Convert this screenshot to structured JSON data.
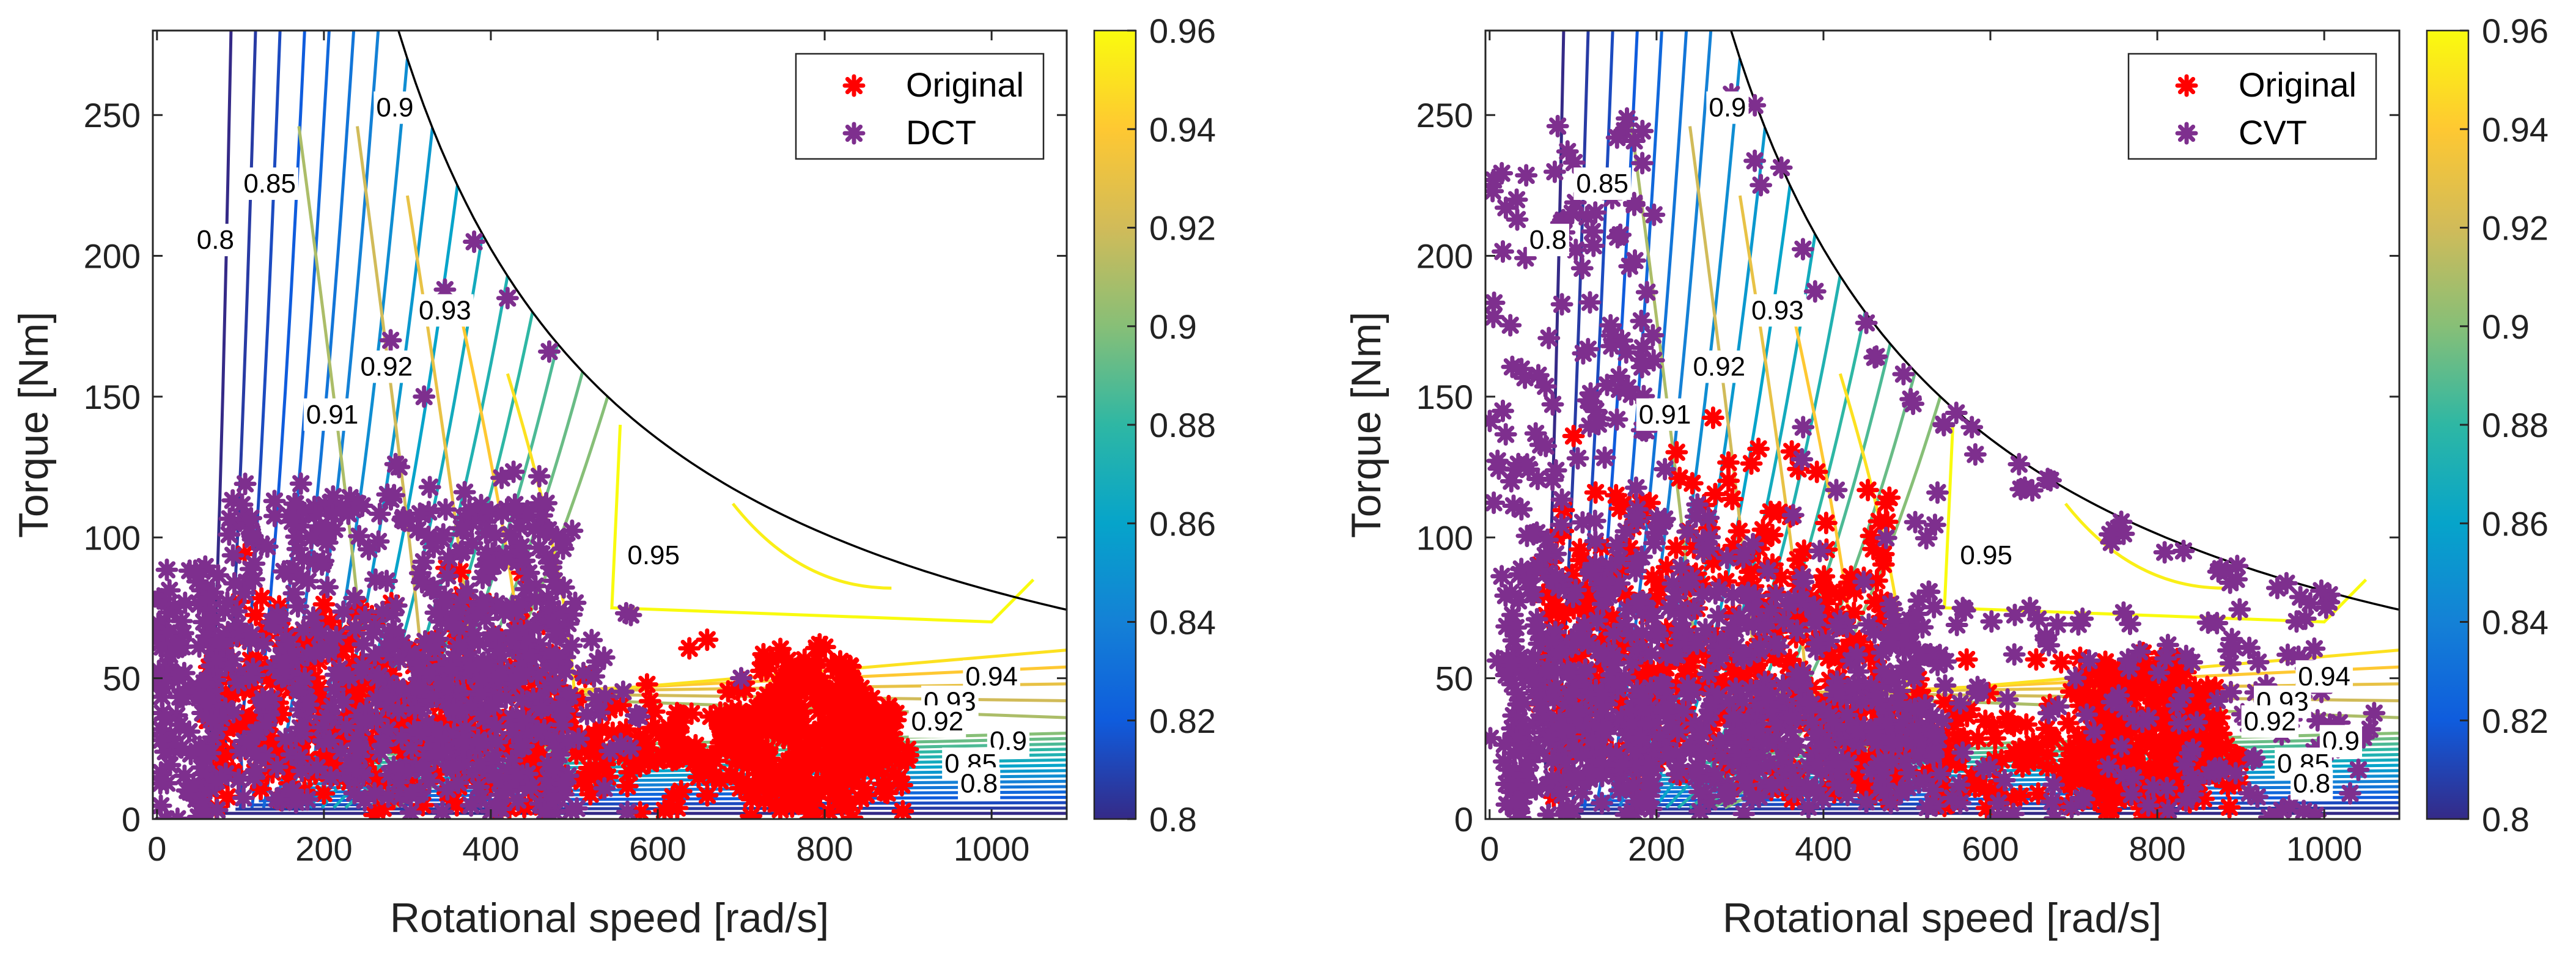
{
  "chart_data": [
    {
      "type": "scatter",
      "overlay": "efficiency-contour",
      "xlabel": "Rotational speed [rad/s]",
      "ylabel": "Torque [Nm]",
      "xlim": [
        -5,
        1090
      ],
      "ylim": [
        0,
        280
      ],
      "xticks": [
        "0",
        "200",
        "400",
        "600",
        "800",
        "1000"
      ],
      "xtick_values": [
        0,
        200,
        400,
        600,
        800,
        1000
      ],
      "yticks": [
        "0",
        "50",
        "100",
        "150",
        "200",
        "250"
      ],
      "ytick_values": [
        0,
        50,
        100,
        150,
        200,
        250
      ],
      "legend": {
        "position": "top-right",
        "entries": [
          "Original",
          "DCT"
        ]
      },
      "colorbar": {
        "range": [
          0.8,
          0.96
        ],
        "ticks": [
          "0.8",
          "0.82",
          "0.84",
          "0.86",
          "0.88",
          "0.9",
          "0.92",
          "0.94",
          "0.96"
        ],
        "tick_values": [
          0.8,
          0.82,
          0.84,
          0.86,
          0.88,
          0.9,
          0.92,
          0.94,
          0.96
        ]
      },
      "contour_labels": [
        {
          "text": "0.8",
          "speed": 70,
          "torque": 205
        },
        {
          "text": "0.85",
          "speed": 135,
          "torque": 225
        },
        {
          "text": "0.9",
          "speed": 285,
          "torque": 252
        },
        {
          "text": "0.91",
          "speed": 210,
          "torque": 143
        },
        {
          "text": "0.92",
          "speed": 275,
          "torque": 160
        },
        {
          "text": "0.93",
          "speed": 345,
          "torque": 180
        },
        {
          "text": "0.95",
          "speed": 595,
          "torque": 93
        },
        {
          "text": "0.94",
          "speed": 1000,
          "torque": 50
        },
        {
          "text": "0.93",
          "speed": 950,
          "torque": 41
        },
        {
          "text": "0.92",
          "speed": 935,
          "torque": 34
        },
        {
          "text": "0.9",
          "speed": 1020,
          "torque": 27
        },
        {
          "text": "0.85",
          "speed": 975,
          "torque": 19
        },
        {
          "text": "0.8",
          "speed": 985,
          "torque": 12
        }
      ],
      "series": [
        {
          "name": "Original",
          "color": "#ff0000",
          "marker": "asterisk",
          "description": "dense operating points, concentrated 0-60 Nm and 400-950 rad/s"
        },
        {
          "name": "DCT",
          "color": "#7e2f8e",
          "marker": "asterisk",
          "description": "dense operating points 0-140 Nm across 0-950 rad/s, plus scattered points along the max torque curve"
        }
      ]
    },
    {
      "type": "scatter",
      "overlay": "efficiency-contour",
      "xlabel": "Rotational speed [rad/s]",
      "ylabel": "Torque [Nm]",
      "xlim": [
        -5,
        1090
      ],
      "ylim": [
        0,
        280
      ],
      "xticks": [
        "0",
        "200",
        "400",
        "600",
        "800",
        "1000"
      ],
      "xtick_values": [
        0,
        200,
        400,
        600,
        800,
        1000
      ],
      "yticks": [
        "0",
        "50",
        "100",
        "150",
        "200",
        "250"
      ],
      "ytick_values": [
        0,
        50,
        100,
        150,
        200,
        250
      ],
      "legend": {
        "position": "top-right",
        "entries": [
          "Original",
          "CVT"
        ]
      },
      "colorbar": {
        "range": [
          0.8,
          0.96
        ],
        "ticks": [
          "0.8",
          "0.82",
          "0.84",
          "0.86",
          "0.88",
          "0.9",
          "0.92",
          "0.94",
          "0.96"
        ],
        "tick_values": [
          0.8,
          0.82,
          0.84,
          0.86,
          0.88,
          0.9,
          0.92,
          0.94,
          0.96
        ]
      },
      "contour_labels": [
        {
          "text": "0.8",
          "speed": 70,
          "torque": 205
        },
        {
          "text": "0.85",
          "speed": 135,
          "torque": 225
        },
        {
          "text": "0.9",
          "speed": 285,
          "torque": 252
        },
        {
          "text": "0.91",
          "speed": 210,
          "torque": 143
        },
        {
          "text": "0.92",
          "speed": 275,
          "torque": 160
        },
        {
          "text": "0.93",
          "speed": 345,
          "torque": 180
        },
        {
          "text": "0.95",
          "speed": 595,
          "torque": 93
        },
        {
          "text": "0.94",
          "speed": 1000,
          "torque": 50
        },
        {
          "text": "0.93",
          "speed": 950,
          "torque": 41
        },
        {
          "text": "0.92",
          "speed": 935,
          "torque": 34
        },
        {
          "text": "0.9",
          "speed": 1020,
          "torque": 27
        },
        {
          "text": "0.85",
          "speed": 975,
          "torque": 19
        },
        {
          "text": "0.8",
          "speed": 985,
          "torque": 12
        }
      ],
      "series": [
        {
          "name": "Original",
          "color": "#ff0000",
          "marker": "asterisk",
          "description": "dense operating points, concentrated 0-110 Nm and 0-950 rad/s"
        },
        {
          "name": "CVT",
          "color": "#7e2f8e",
          "marker": "asterisk",
          "description": "operating points spread 0-250 Nm across 0-1080 rad/s, many along the max torque curve"
        }
      ]
    }
  ],
  "colors": {
    "original": "#ff0000",
    "shifted": "#7e2f8e",
    "frame": "#262626",
    "envelope": "#000000"
  }
}
